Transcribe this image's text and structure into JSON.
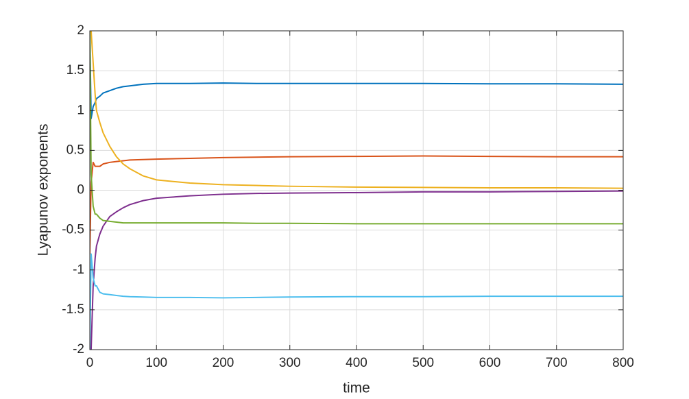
{
  "chart_data": {
    "type": "line",
    "xlabel": "time",
    "ylabel": "Lyapunov exponents",
    "x": [
      0,
      2,
      5,
      8,
      10,
      15,
      20,
      30,
      40,
      50,
      60,
      80,
      100,
      150,
      200,
      250,
      300,
      400,
      500,
      600,
      700,
      800
    ],
    "series": [
      {
        "color": "#0072bd",
        "values": [
          2,
          0.9,
          1.05,
          1.1,
          1.15,
          1.18,
          1.22,
          1.25,
          1.28,
          1.3,
          1.31,
          1.33,
          1.34,
          1.34,
          1.345,
          1.34,
          1.34,
          1.34,
          1.34,
          1.335,
          1.335,
          1.33
        ]
      },
      {
        "color": "#d95319",
        "values": [
          -0.8,
          0.1,
          0.35,
          0.3,
          0.3,
          0.3,
          0.33,
          0.35,
          0.36,
          0.37,
          0.38,
          0.385,
          0.39,
          0.4,
          0.41,
          0.415,
          0.42,
          0.425,
          0.43,
          0.425,
          0.42,
          0.42
        ]
      },
      {
        "color": "#edb120",
        "values": [
          2,
          2,
          1.6,
          1.2,
          1.0,
          0.85,
          0.72,
          0.55,
          0.42,
          0.33,
          0.27,
          0.18,
          0.13,
          0.09,
          0.07,
          0.06,
          0.05,
          0.04,
          0.035,
          0.03,
          0.03,
          0.025
        ]
      },
      {
        "color": "#7e2f8e",
        "values": [
          -2,
          -2,
          -1.2,
          -0.85,
          -0.7,
          -0.55,
          -0.45,
          -0.33,
          -0.27,
          -0.22,
          -0.18,
          -0.13,
          -0.1,
          -0.07,
          -0.05,
          -0.04,
          -0.035,
          -0.03,
          -0.02,
          -0.02,
          -0.015,
          -0.01
        ]
      },
      {
        "color": "#77ac30",
        "values": [
          2,
          0.2,
          -0.2,
          -0.3,
          -0.3,
          -0.35,
          -0.38,
          -0.39,
          -0.4,
          -0.41,
          -0.41,
          -0.41,
          -0.41,
          -0.41,
          -0.41,
          -0.415,
          -0.415,
          -0.42,
          -0.42,
          -0.42,
          -0.42,
          -0.42
        ]
      },
      {
        "color": "#4dbeee",
        "values": [
          -2,
          -0.8,
          -1.1,
          -1.2,
          -1.2,
          -1.28,
          -1.3,
          -1.31,
          -1.32,
          -1.33,
          -1.335,
          -1.34,
          -1.345,
          -1.345,
          -1.35,
          -1.345,
          -1.34,
          -1.335,
          -1.335,
          -1.33,
          -1.33,
          -1.33
        ]
      }
    ],
    "xlim": [
      0,
      800
    ],
    "xticks": [
      0,
      100,
      200,
      300,
      400,
      500,
      600,
      700,
      800
    ],
    "ylim": [
      -2,
      2
    ],
    "yticks": [
      -2,
      -1.5,
      -1,
      -0.5,
      0,
      0.5,
      1,
      1.5,
      2
    ],
    "grid": true
  }
}
